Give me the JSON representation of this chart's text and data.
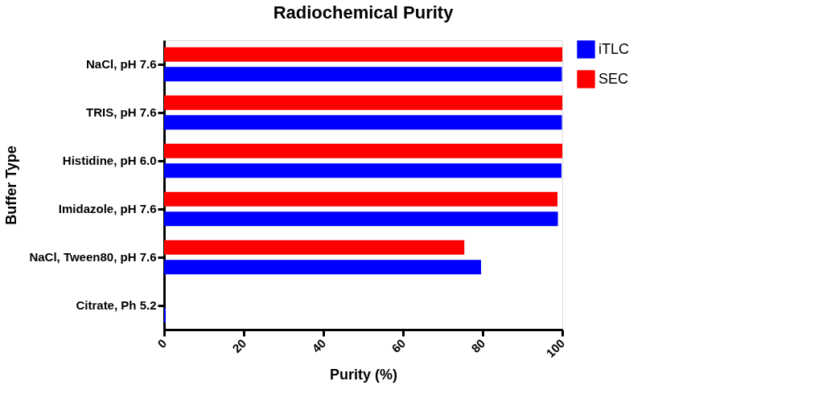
{
  "chart_data": {
    "type": "bar",
    "orientation": "horizontal",
    "title": "Radiochemical Purity",
    "xlabel": "Purity (%)",
    "ylabel": "Buffer Type",
    "categories": [
      "NaCl, pH 7.6",
      "TRIS, pH 7.6",
      "Histidine, pH 6.0",
      "Imidazole, pH 7.6",
      "NaCl, Tween80, pH 7.6",
      "Citrate, Ph 5.2"
    ],
    "series": [
      {
        "name": "iTLC",
        "color": "#0000ff",
        "values": [
          99.9,
          99.9,
          99.8,
          98.9,
          79.6,
          0.4
        ]
      },
      {
        "name": "SEC",
        "color": "#ff0000",
        "values": [
          100,
          100,
          100,
          98.8,
          75.4,
          0
        ]
      }
    ],
    "xlim": [
      0,
      100
    ],
    "xticks": [
      0,
      20,
      40,
      60,
      80,
      100
    ],
    "grid": false,
    "legend": "top right"
  }
}
